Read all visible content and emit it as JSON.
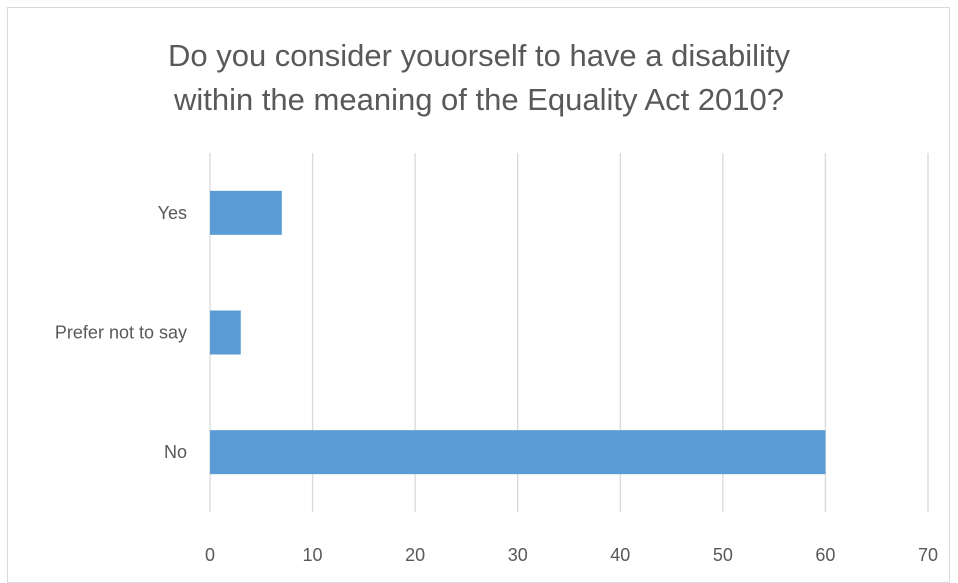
{
  "chart_data": {
    "type": "bar",
    "orientation": "horizontal",
    "title_lines": [
      "Do you consider youorself to have a disability",
      "within the meaning of the Equality Act 2010?"
    ],
    "categories": [
      "Yes",
      "Prefer not to say",
      "No"
    ],
    "values": [
      7,
      3,
      60
    ],
    "xlim": [
      0,
      70
    ],
    "xticks": [
      0,
      10,
      20,
      30,
      40,
      50,
      60,
      70
    ],
    "grid": "vertical",
    "legend": "none",
    "bar_color": "#5b9bd5",
    "grid_color": "#d9d9d9"
  }
}
